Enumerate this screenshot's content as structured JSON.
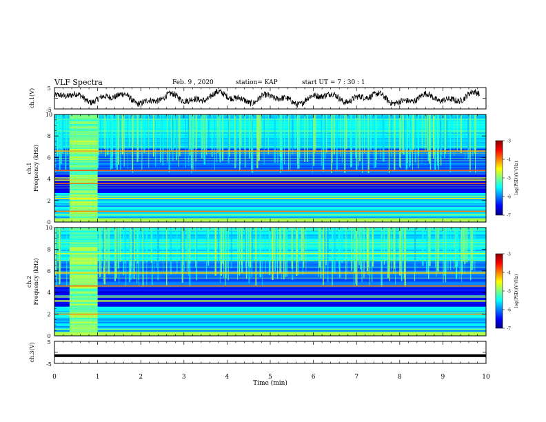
{
  "header": {
    "title": "VLF Spectra",
    "date": "Feb. 9 , 2020",
    "station": "station= KAP",
    "start": "start UT =  7 : 30 : 1"
  },
  "colors": {
    "colormap": [
      "#00007f",
      "#0000ff",
      "#0080ff",
      "#00ffff",
      "#80ff80",
      "#ffff00",
      "#ff8000",
      "#ff0000",
      "#7f0000"
    ],
    "waveform": "#000000"
  },
  "chart_data": [
    {
      "type": "line",
      "panel": "ch1-waveform",
      "ylabel": "ch.1(V)",
      "ylim": [
        -5,
        5
      ],
      "yticks": [
        "5",
        "-5"
      ],
      "xlim": [
        0,
        10
      ],
      "description_of_trace": "noisy oscillating signal around 0 V, amplitude ~2-3 V"
    },
    {
      "type": "heatmap",
      "panel": "ch1-spectrogram",
      "ylabel": "ch.1\nFrequency (kHz)",
      "ylim": [
        0,
        10
      ],
      "yticks": [
        "0",
        "2",
        "4",
        "6",
        "8",
        "10"
      ],
      "xlim": [
        0,
        10
      ],
      "colorbar": {
        "label": "log(PSD)(V²/Hz)",
        "range": [
          -7,
          -3
        ],
        "ticks": [
          "-3",
          "-4",
          "-5",
          "-6",
          "-7"
        ]
      },
      "bright_band_window_min": [
        0.35,
        1.0
      ],
      "strong_bands_khz": [
        0.7,
        1.0,
        2.2,
        2.4,
        3.6,
        3.9,
        4.1,
        4.8,
        6.6
      ]
    },
    {
      "type": "heatmap",
      "panel": "ch2-spectrogram",
      "ylabel": "ch.2\nFrequency (kHz)",
      "ylim": [
        0,
        10
      ],
      "yticks": [
        "0",
        "2",
        "4",
        "6",
        "8",
        "10"
      ],
      "xlim": [
        0,
        10
      ],
      "colorbar": {
        "label": "log(PSD)(V²/Hz)",
        "range": [
          -7,
          -3
        ],
        "ticks": [
          "-3",
          "-4",
          "-5",
          "-6",
          "-7"
        ]
      },
      "bright_band_window_min": [
        0.35,
        1.0
      ],
      "strong_bands_khz": [
        0.6,
        2.0,
        3.2,
        3.6,
        4.6,
        5.8,
        7.6
      ]
    },
    {
      "type": "line",
      "panel": "ch3-waveform",
      "ylabel": "ch.3(V)",
      "ylim": [
        -5,
        5
      ],
      "yticks": [
        "5",
        "-5"
      ],
      "xlim": [
        0,
        10
      ],
      "constant_value": -1.5
    }
  ],
  "xaxis": {
    "label": "Time (min)",
    "ticks": [
      "0",
      "1",
      "2",
      "3",
      "4",
      "5",
      "6",
      "7",
      "8",
      "9",
      "10"
    ]
  }
}
